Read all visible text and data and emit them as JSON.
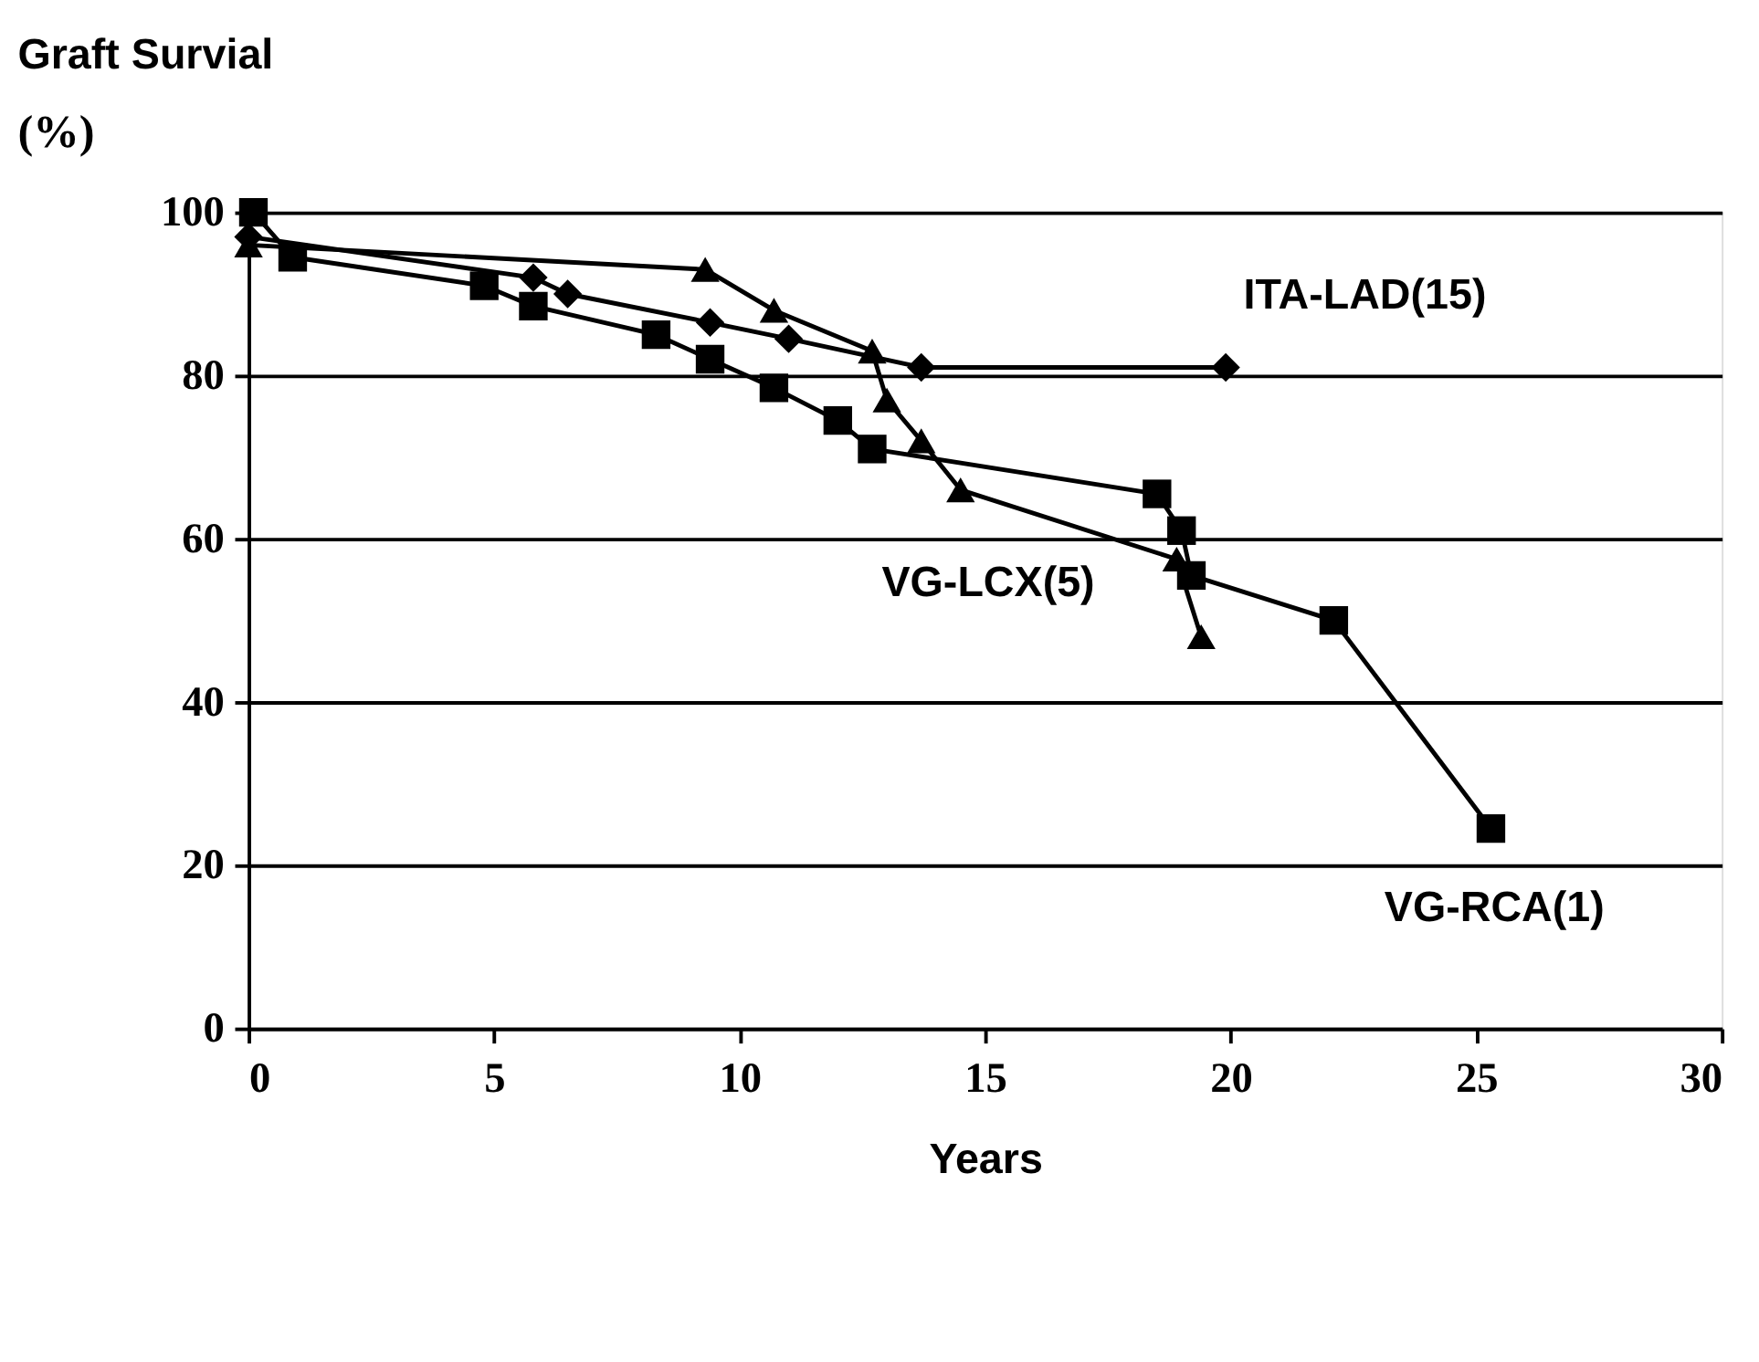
{
  "chart_data": {
    "type": "line",
    "title": "Graft Survial",
    "ylabel": "(%)",
    "xlabel": "Years",
    "xlim": [
      0,
      30
    ],
    "xticks": [
      0,
      5,
      10,
      15,
      20,
      25,
      30
    ],
    "ylim": [
      0,
      100
    ],
    "yticks": [
      0,
      20,
      40,
      60,
      80,
      100
    ],
    "grid": "y",
    "line_style": "solid",
    "series": [
      {
        "name": "ITA-LAD(15)",
        "color": "#000000",
        "marker": "diamond",
        "x": [
          0,
          5.8,
          6.5,
          9.4,
          11.0,
          13.7,
          19.9
        ],
        "values": [
          97,
          92,
          90,
          86.5,
          84.5,
          81,
          81
        ]
      },
      {
        "name": "VG-LCX(5)",
        "color": "#000000",
        "marker": "triangle",
        "x": [
          0,
          9.3,
          10.7,
          12.7,
          13.0,
          13.7,
          14.5,
          18.9,
          19.4
        ],
        "values": [
          96,
          93,
          88,
          83,
          77,
          72,
          66,
          57.5,
          48
        ]
      },
      {
        "name": "VG-RCA(1)",
        "color": "#000000",
        "marker": "square",
        "x": [
          0.1,
          0.9,
          4.8,
          5.8,
          8.3,
          9.4,
          10.7,
          12.0,
          12.7,
          18.5,
          19.0,
          19.2,
          22.1,
          25.3
        ],
        "values": [
          100,
          94.5,
          91,
          88.5,
          85,
          82,
          78.5,
          74.5,
          71,
          65.5,
          61,
          55.5,
          50,
          24.5
        ]
      }
    ]
  }
}
